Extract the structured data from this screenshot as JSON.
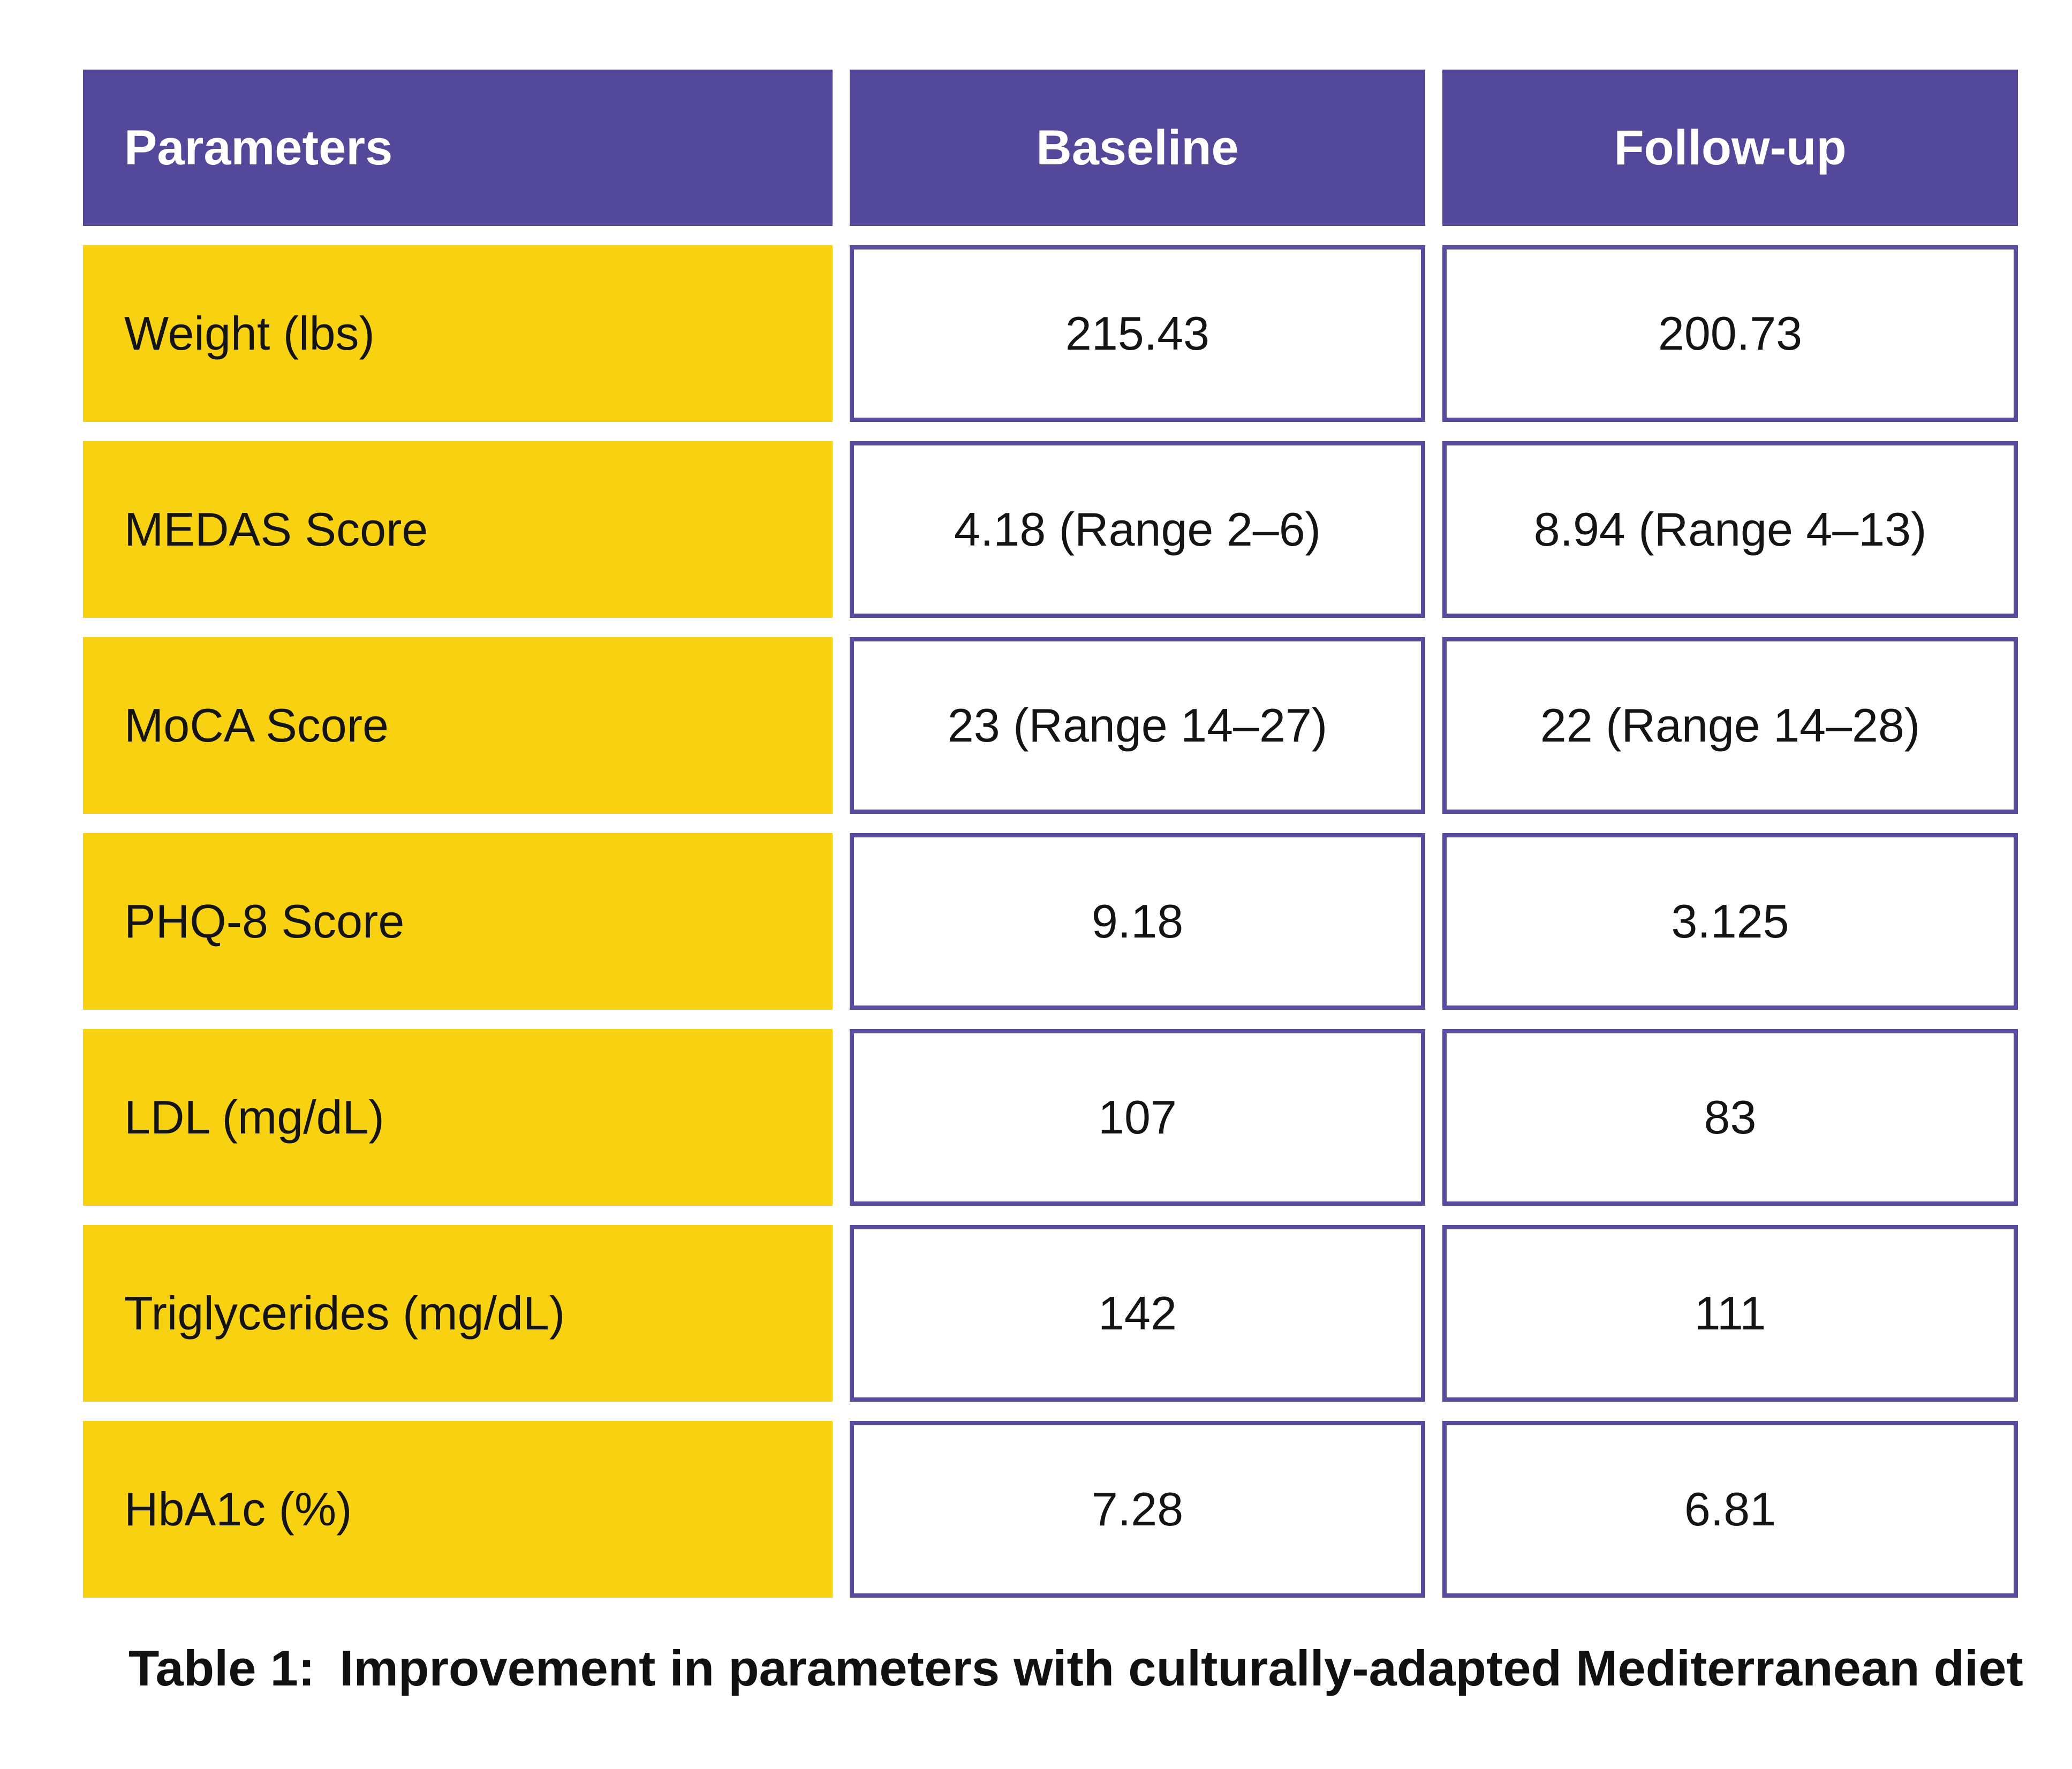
{
  "table": {
    "columns": [
      "Parameters",
      "Baseline",
      "Follow-up"
    ],
    "rows": [
      {
        "parameter": "Weight (lbs)",
        "baseline": "215.43",
        "followup": "200.73"
      },
      {
        "parameter": "MEDAS Score",
        "baseline": "4.18 (Range 2–6)",
        "followup": "8.94 (Range 4–13)"
      },
      {
        "parameter": "MoCA Score",
        "baseline": "23 (Range 14–27)",
        "followup": "22 (Range 14–28)"
      },
      {
        "parameter": "PHQ-8 Score",
        "baseline": "9.18",
        "followup": "3.125"
      },
      {
        "parameter": "LDL (mg/dL)",
        "baseline": "107",
        "followup": "83"
      },
      {
        "parameter": "Triglycerides (mg/dL)",
        "baseline": "142",
        "followup": "111"
      },
      {
        "parameter": "HbA1c (%)",
        "baseline": "7.28",
        "followup": "6.81"
      }
    ]
  },
  "caption": {
    "label": "Table 1:",
    "text": "Improvement in parameters with culturally-adapted Mediterranean diet"
  },
  "colors": {
    "header_purple": "#54489a",
    "cell_border_purple": "#584c9e",
    "parameter_yellow": "#f8d211",
    "text_black": "#141414",
    "background_white": "#ffffff"
  },
  "chart_data": {
    "type": "table",
    "title": "Table 1: Improvement in parameters with culturally-adapted Mediterranean diet",
    "columns": [
      "Parameters",
      "Baseline",
      "Follow-up"
    ],
    "rows": [
      [
        "Weight (lbs)",
        "215.43",
        "200.73"
      ],
      [
        "MEDAS Score",
        "4.18 (Range 2–6)",
        "8.94 (Range 4–13)"
      ],
      [
        "MoCA Score",
        "23 (Range 14–27)",
        "22 (Range 14–28)"
      ],
      [
        "PHQ-8 Score",
        "9.18",
        "3.125"
      ],
      [
        "LDL (mg/dL)",
        "107",
        "83"
      ],
      [
        "Triglycerides (mg/dL)",
        "142",
        "111"
      ],
      [
        "HbA1c (%)",
        "7.28",
        "6.81"
      ]
    ]
  }
}
